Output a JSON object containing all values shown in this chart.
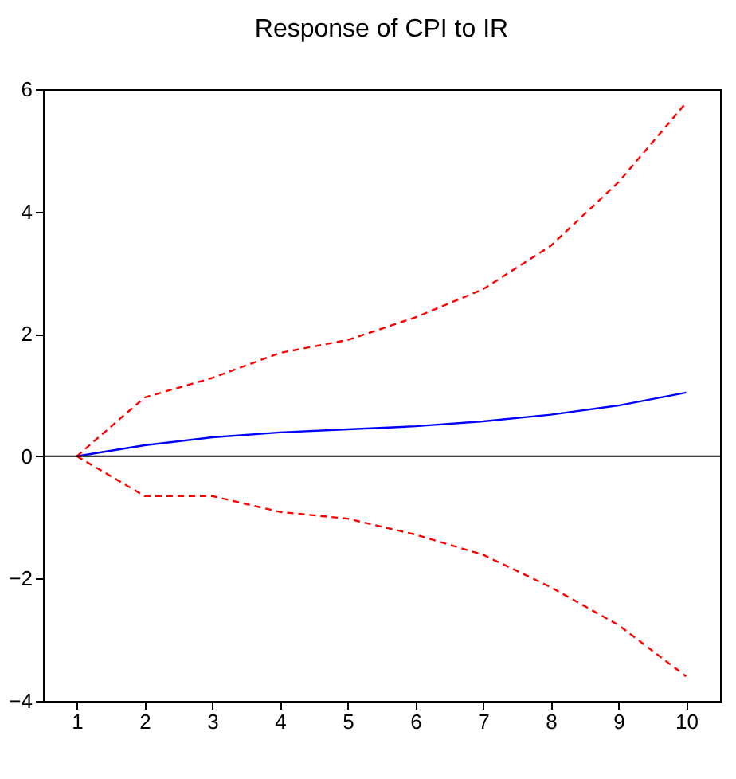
{
  "chart_data": {
    "type": "line",
    "title": "Response of CPI to IR",
    "categories": [
      "1",
      "2",
      "3",
      "4",
      "5",
      "6",
      "7",
      "8",
      "9",
      "10"
    ],
    "series": [
      {
        "color": "#0000ff",
        "line_style": "solid",
        "values": [
          0,
          0.18,
          0.31,
          0.39,
          0.44,
          0.49,
          0.57,
          0.68,
          0.83,
          1.04
        ]
      },
      {
        "color": "#ff0000",
        "line_style": "dashed",
        "values": [
          0,
          0.96,
          1.28,
          1.69,
          1.9,
          2.27,
          2.73,
          3.44,
          4.48,
          5.78
        ]
      },
      {
        "color": "#ff0000",
        "line_style": "dashed",
        "values": [
          0,
          -0.65,
          -0.65,
          -0.91,
          -1.02,
          -1.28,
          -1.61,
          -2.14,
          -2.76,
          -3.6
        ]
      }
    ],
    "ylim": [
      -4,
      6
    ],
    "yticks": [
      -4,
      -2,
      0,
      2,
      4,
      6
    ],
    "ref_lines": [
      {
        "axis": "y",
        "value": 0,
        "color": "#000000"
      }
    ],
    "grid": false,
    "marker": "none"
  }
}
